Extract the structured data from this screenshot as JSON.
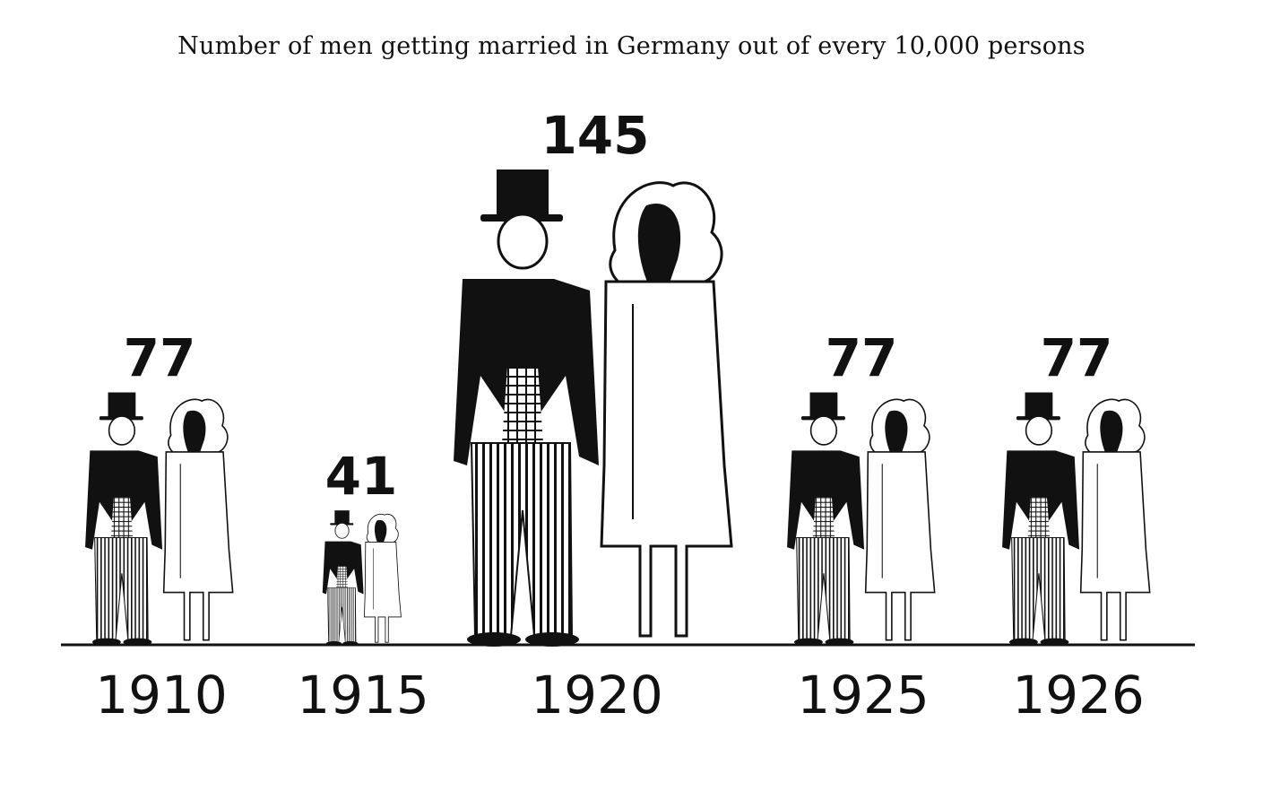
{
  "chart_data": {
    "type": "bar",
    "title": "Number of men getting married in Germany out of every 10,000 persons",
    "categories": [
      "1910",
      "1915",
      "1920",
      "1925",
      "1926"
    ],
    "values": [
      77,
      41,
      145,
      77,
      77
    ],
    "ylim": [
      0,
      145
    ],
    "grid": false,
    "legend": "none",
    "colors": {
      "ink": "#111111",
      "paper": "#ffffff"
    }
  }
}
